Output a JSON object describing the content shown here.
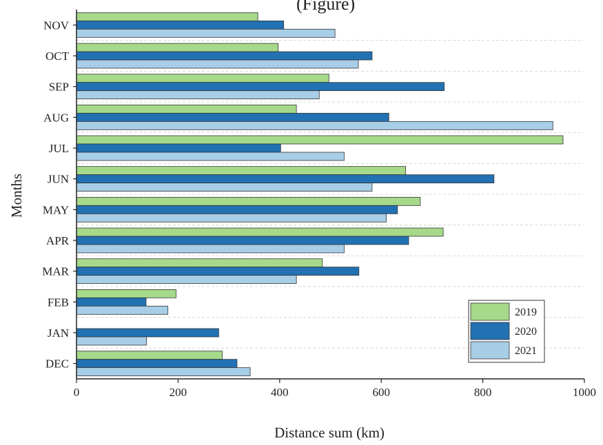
{
  "chart_data": {
    "type": "bar",
    "orientation": "horizontal",
    "title_fragment": "(Figure)",
    "xlabel": "Distance sum (km)",
    "ylabel": "Months",
    "xlim": [
      0,
      1000
    ],
    "xticks": [
      "0",
      "200",
      "400",
      "600",
      "800",
      "1000"
    ],
    "categories": [
      "NOV",
      "OCT",
      "SEP",
      "AUG",
      "JUL",
      "JUN",
      "MAY",
      "APR",
      "MAR",
      "FEB",
      "JAN",
      "DEC"
    ],
    "series": [
      {
        "name": "2019",
        "color": "#a6d98a",
        "values": [
          357,
          397,
          497,
          433,
          958,
          648,
          677,
          722,
          484,
          196,
          0,
          287
        ]
      },
      {
        "name": "2020",
        "color": "#2271b3",
        "values": [
          408,
          582,
          724,
          615,
          402,
          822,
          632,
          654,
          556,
          137,
          280,
          316
        ]
      },
      {
        "name": "2021",
        "color": "#a8cde6",
        "values": [
          509,
          555,
          478,
          938,
          527,
          582,
          610,
          527,
          433,
          180,
          138,
          342
        ]
      }
    ],
    "grid": "horizontal dashed",
    "legend_position": "bottom-right"
  }
}
